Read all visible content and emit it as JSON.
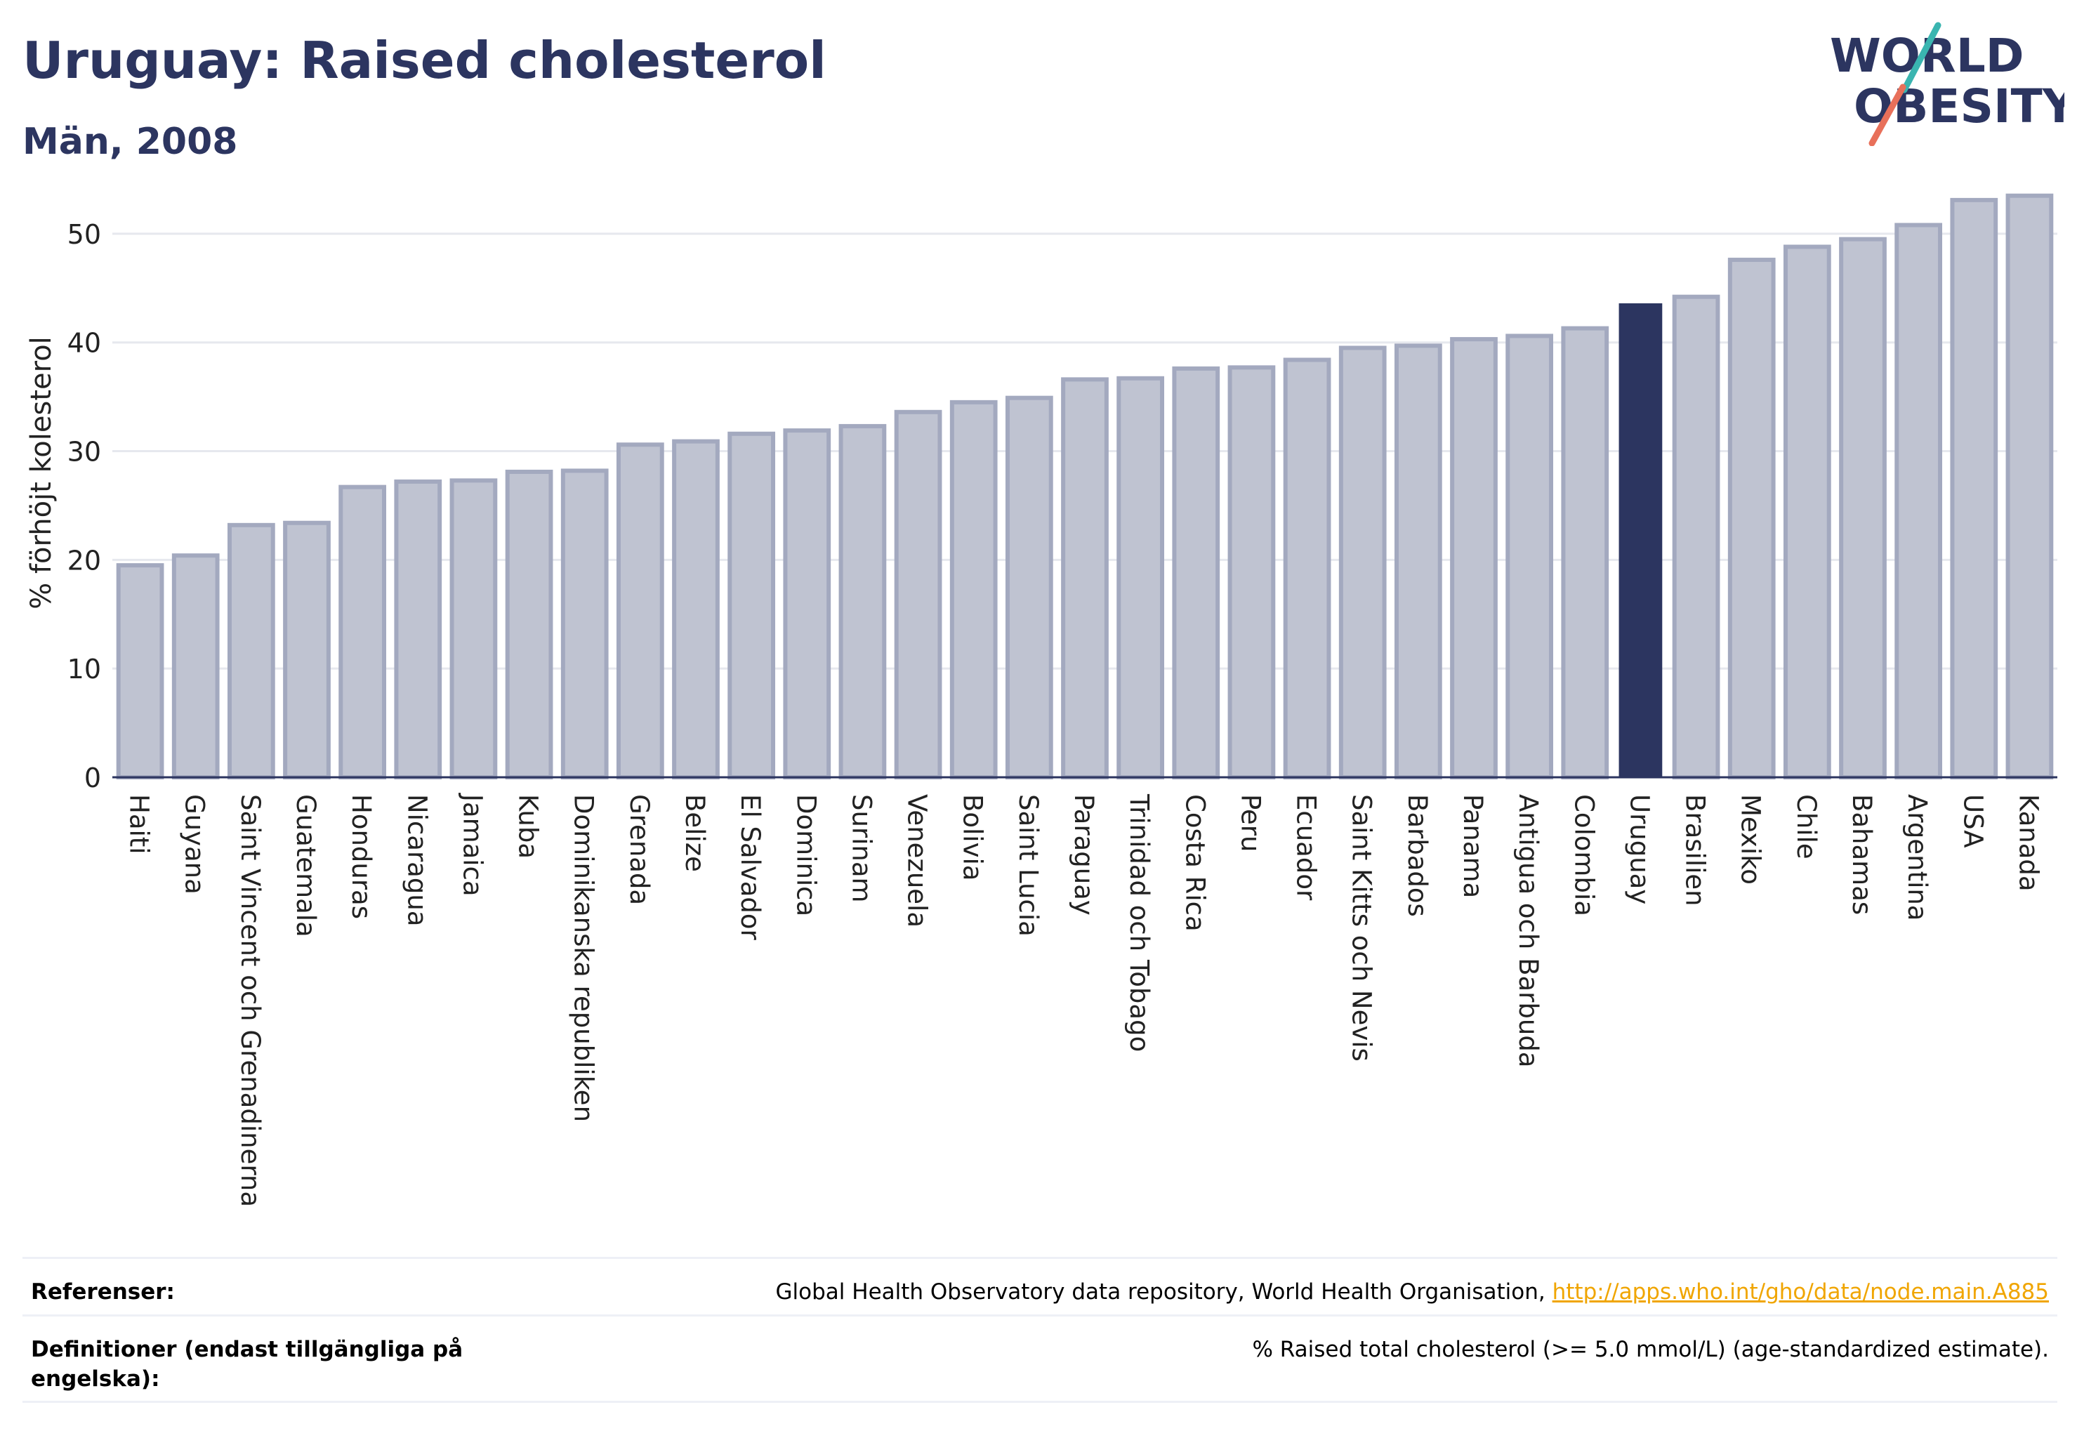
{
  "header": {
    "title": "Uruguay: Raised cholesterol",
    "subtitle": "Män, 2008"
  },
  "logo": {
    "text_line1": "WORLD",
    "text_line2": "OBESITY",
    "color_text": "#2c3560",
    "color_accent_top": "#3ab5b0",
    "color_accent_bottom": "#e8705a"
  },
  "chart_data": {
    "type": "bar",
    "title": "Uruguay: Raised cholesterol",
    "subtitle": "Män, 2008",
    "ylabel": "% förhöjt kolesterol",
    "xlabel": "",
    "ylim": [
      0,
      56
    ],
    "yticks": [
      0,
      10,
      20,
      30,
      40,
      50
    ],
    "grid": true,
    "highlight": "Uruguay",
    "colors": {
      "bar_fill": "#bfc3d1",
      "bar_edge": "#a3a9bf",
      "highlight": "#2c3560",
      "grid": "#e6e8ee",
      "axis": "#2c3560"
    },
    "categories": [
      "Haiti",
      "Guyana",
      "Saint Vincent och Grenadinerna",
      "Guatemala",
      "Honduras",
      "Nicaragua",
      "Jamaica",
      "Kuba",
      "Dominikanska republiken",
      "Grenada",
      "Belize",
      "El Salvador",
      "Dominica",
      "Surinam",
      "Venezuela",
      "Bolivia",
      "Saint Lucia",
      "Paraguay",
      "Trinidad och Tobago",
      "Costa Rica",
      "Peru",
      "Ecuador",
      "Saint Kitts och Nevis",
      "Barbados",
      "Panama",
      "Antigua och Barbuda",
      "Colombia",
      "Uruguay",
      "Brasilien",
      "Mexiko",
      "Chile",
      "Bahamas",
      "Argentina",
      "USA",
      "Kanada"
    ],
    "values": [
      19.5,
      20.4,
      23.2,
      23.4,
      26.7,
      27.2,
      27.3,
      28.1,
      28.2,
      30.6,
      30.9,
      31.6,
      31.9,
      32.3,
      33.6,
      34.5,
      34.9,
      36.6,
      36.7,
      37.6,
      37.7,
      38.4,
      39.5,
      39.7,
      40.3,
      40.6,
      41.3,
      43.6,
      44.2,
      47.6,
      48.8,
      49.5,
      50.8,
      53.1,
      53.5
    ]
  },
  "references": {
    "label": "Referenser:",
    "text": "Global Health Observatory data repository, World Health Organisation,",
    "link": "http://apps.who.int/gho/data/node.main.A885"
  },
  "definitions": {
    "label": "Definitioner (endast tillgängliga på engelska):",
    "text": "% Raised total cholesterol (>= 5.0 mmol/L) (age-standardized estimate)."
  }
}
